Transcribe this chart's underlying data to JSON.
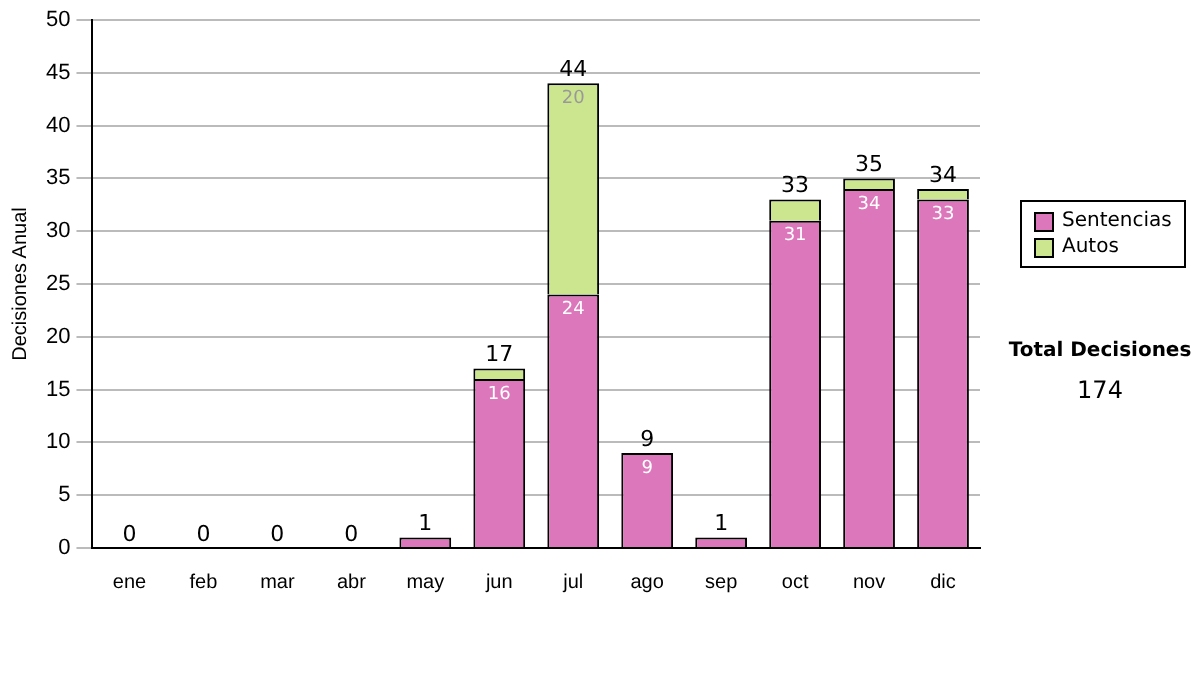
{
  "chart_data": {
    "type": "bar",
    "stacked": true,
    "ylabel": "Decisiones Anual",
    "categories": [
      "ene",
      "feb",
      "mar",
      "abr",
      "may",
      "jun",
      "jul",
      "ago",
      "sep",
      "oct",
      "nov",
      "dic"
    ],
    "series": [
      {
        "name": "Sentencias",
        "color": "#dd77bb",
        "values": [
          0,
          0,
          0,
          0,
          1,
          16,
          24,
          9,
          1,
          31,
          34,
          33
        ],
        "value_labels": [
          null,
          null,
          null,
          null,
          null,
          "16",
          "24",
          "9",
          null,
          "31",
          "34",
          "33"
        ]
      },
      {
        "name": "Autos",
        "color": "#cce68f",
        "values": [
          0,
          0,
          0,
          0,
          0,
          1,
          20,
          0,
          0,
          2,
          1,
          1
        ],
        "value_labels": [
          null,
          null,
          null,
          null,
          null,
          null,
          "20",
          null,
          null,
          null,
          null,
          null
        ]
      }
    ],
    "totals": [
      "0",
      "0",
      "0",
      "0",
      "1",
      "17",
      "44",
      "9",
      "1",
      "33",
      "35",
      "34"
    ],
    "ylim": [
      0,
      50
    ],
    "yticks": [
      0,
      5,
      10,
      15,
      20,
      25,
      30,
      35,
      40,
      45,
      50
    ],
    "grid": "y",
    "legend": "right",
    "annotations": [
      "Total Decisiones",
      "174"
    ]
  }
}
